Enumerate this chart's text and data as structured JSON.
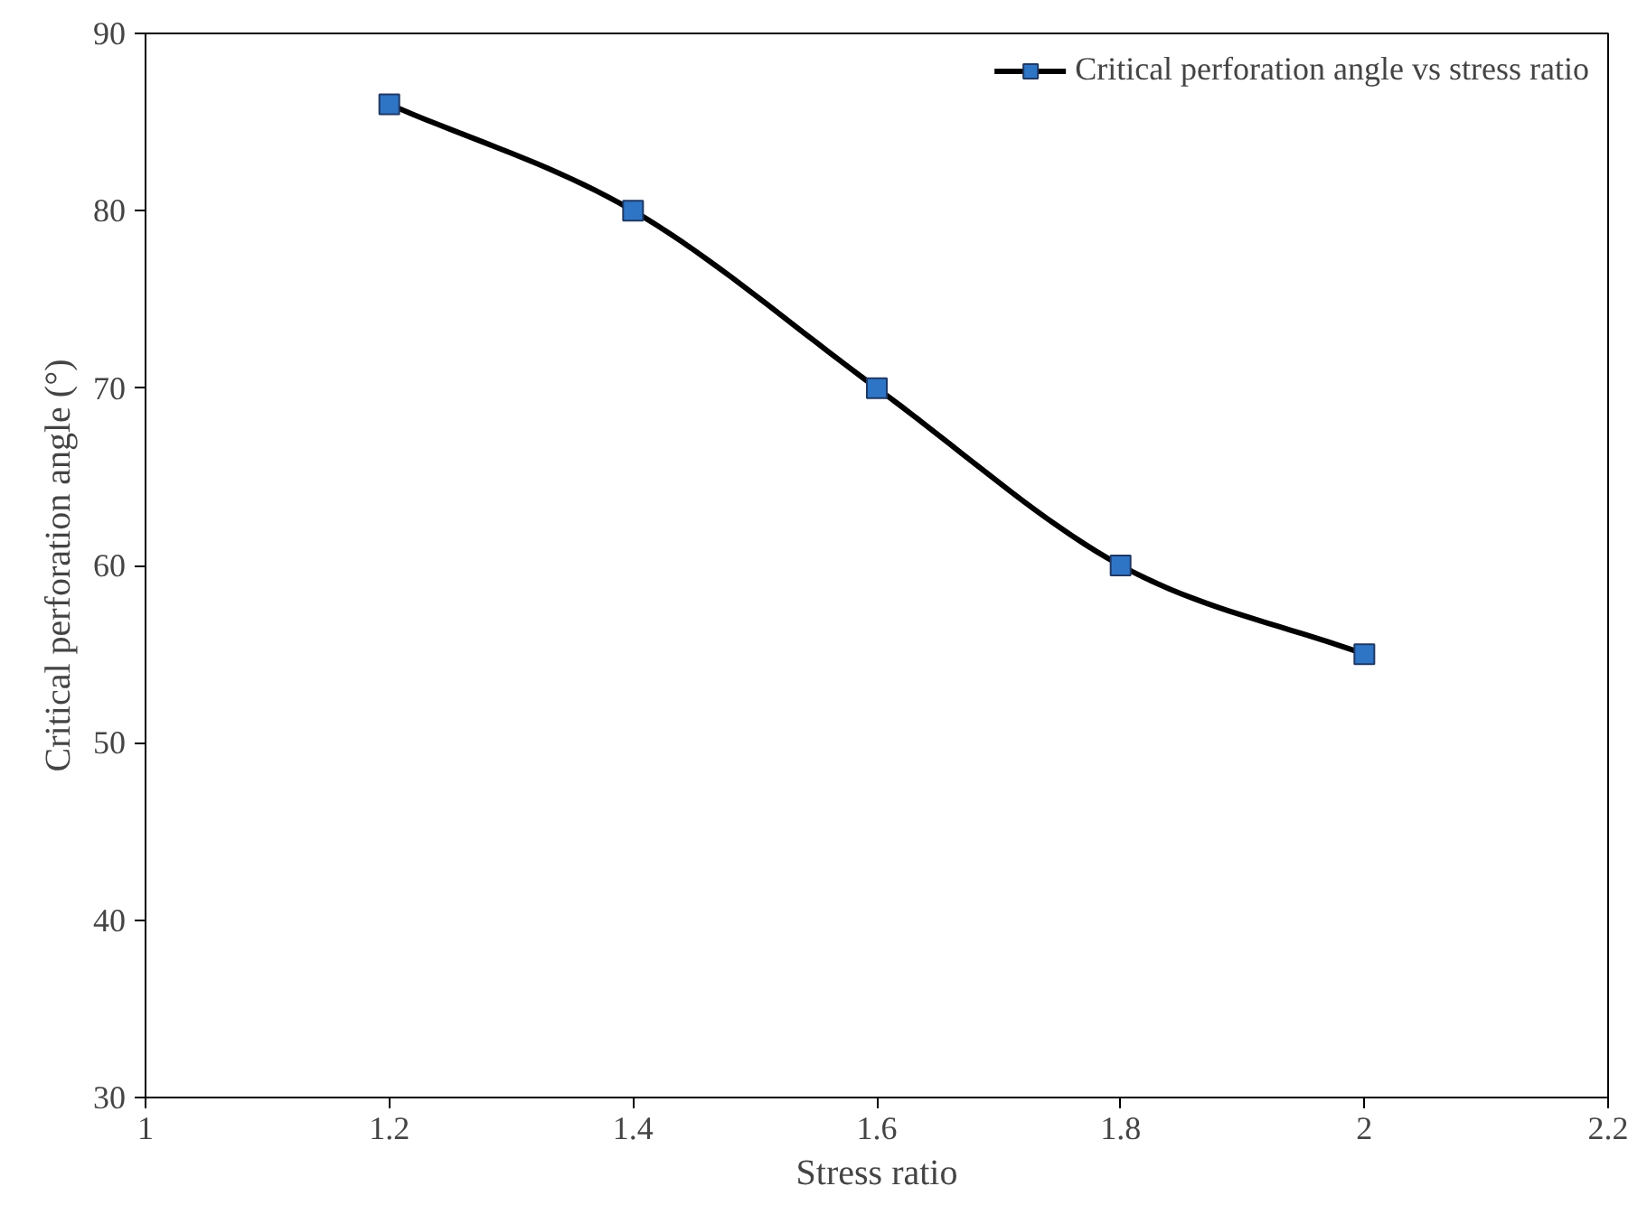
{
  "chart_data": {
    "type": "line",
    "xlabel": "Stress ratio",
    "ylabel": "Critical perforation angle (°)",
    "x": [
      1.2,
      1.4,
      1.6,
      1.8,
      2
    ],
    "series": [
      {
        "name": "Critical perforation angle vs stress ratio",
        "color": "#2e75c6",
        "values": [
          86,
          80,
          70,
          60,
          55
        ]
      }
    ],
    "xlim": [
      1,
      2.2
    ],
    "xticks": [
      1,
      1.2,
      1.4,
      1.6,
      1.8,
      2,
      2.2
    ],
    "ylim": [
      30,
      90
    ],
    "yticks": [
      30,
      40,
      50,
      60,
      70,
      80,
      90
    ],
    "grid": false,
    "legend": "top right",
    "marker": "square",
    "line_style": "solid"
  }
}
